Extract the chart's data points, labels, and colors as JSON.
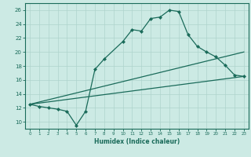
{
  "xlabel": "Humidex (Indice chaleur)",
  "xlim": [
    -0.5,
    23.5
  ],
  "ylim": [
    9,
    27
  ],
  "xticks": [
    0,
    1,
    2,
    3,
    4,
    5,
    6,
    7,
    8,
    9,
    10,
    11,
    12,
    13,
    14,
    15,
    16,
    17,
    18,
    19,
    20,
    21,
    22,
    23
  ],
  "yticks": [
    10,
    12,
    14,
    16,
    18,
    20,
    22,
    24,
    26
  ],
  "bg_color": "#cceae4",
  "line_color": "#1a6b5a",
  "grid_color": "#aed4cc",
  "zigzag_x": [
    0,
    1,
    2,
    3,
    4,
    5,
    6,
    7,
    8,
    10,
    11,
    12,
    13,
    14,
    15,
    16,
    17,
    18,
    19,
    20,
    21,
    22,
    23
  ],
  "zigzag_y": [
    12.5,
    12.2,
    12.0,
    11.8,
    11.5,
    9.5,
    11.5,
    17.5,
    19.0,
    21.5,
    23.2,
    23.0,
    24.8,
    25.0,
    26.0,
    25.8,
    22.5,
    20.8,
    20.0,
    19.3,
    18.1,
    16.7,
    16.5
  ],
  "line2_x": [
    0,
    23
  ],
  "line2_y": [
    12.5,
    16.5
  ],
  "line3_x": [
    0,
    23
  ],
  "line3_y": [
    12.5,
    20.0
  ]
}
